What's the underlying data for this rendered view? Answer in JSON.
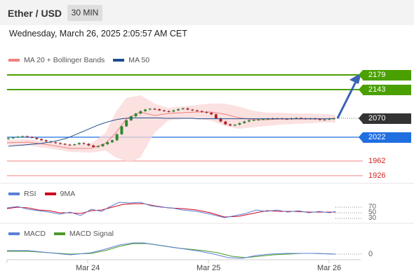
{
  "header": {
    "title": "Ether / USD",
    "timeframe": "30 MIN"
  },
  "timestamp": "Wednesday, March 26, 2025 2:05:57 AM CET",
  "legend_main": [
    {
      "label": "MA 20 + Bollinger Bands",
      "color": "#f08080"
    },
    {
      "label": "MA 50",
      "color": "#1f4e8c"
    }
  ],
  "legend_rsi": [
    {
      "label": "RSI",
      "color": "#5b7fd6"
    },
    {
      "label": "9MA",
      "color": "#d0021b"
    }
  ],
  "legend_macd": [
    {
      "label": "MACD",
      "color": "#5b7fd6"
    },
    {
      "label": "MACD Signal",
      "color": "#4a9a2a"
    }
  ],
  "price_tags": {
    "resistance_2": {
      "value": "2179",
      "color": "#4aa000"
    },
    "resistance_1": {
      "value": "2143",
      "color": "#4aa000"
    },
    "current": {
      "value": "2070",
      "color": "#333333"
    },
    "pivot": {
      "value": "2022",
      "color": "#1f6fe0"
    }
  },
  "support_levels": [
    "1962",
    "1926"
  ],
  "rsi_levels": [
    "70",
    "50",
    "30"
  ],
  "macd_zero": "0",
  "x_axis": [
    "Mar 24",
    "Mar 25",
    "Mar 26"
  ],
  "chart_data": {
    "type": "candlestick",
    "price_levels": {
      "r2": 2179,
      "r1": 2143,
      "current": 2070,
      "pivot": 2022,
      "s1": 1962,
      "s2": 1926
    },
    "close_series": [
      2020,
      2022,
      2024,
      2025,
      2023,
      2021,
      2018,
      2015,
      2012,
      2010,
      2008,
      2006,
      2004,
      2003,
      2005,
      2008,
      2006,
      2002,
      1998,
      2000,
      2005,
      2010,
      2015,
      2030,
      2050,
      2065,
      2075,
      2082,
      2088,
      2092,
      2094,
      2093,
      2090,
      2088,
      2087,
      2090,
      2093,
      2095,
      2092,
      2090,
      2088,
      2086,
      2084,
      2080,
      2070,
      2062,
      2055,
      2052,
      2054,
      2058,
      2062,
      2065,
      2066,
      2067,
      2068,
      2069,
      2070,
      2070,
      2069,
      2068,
      2070,
      2071,
      2070,
      2069,
      2070,
      2068,
      2066,
      2067,
      2069,
      2070
    ],
    "ma50_series": [
      2000,
      2001,
      2002,
      2003,
      2004,
      2005,
      2006,
      2007,
      2009,
      2011,
      2013,
      2016,
      2019,
      2023,
      2028,
      2033,
      2038,
      2043,
      2048,
      2053,
      2057,
      2061,
      2064,
      2067,
      2069,
      2070,
      2071,
      2071,
      2071,
      2071,
      2071,
      2071,
      2071,
      2070,
      2070,
      2070,
      2070,
      2070,
      2070,
      2070,
      2069,
      2069,
      2069,
      2069,
      2069,
      2069,
      2069,
      2069,
      2069,
      2069,
      2069,
      2069,
      2069,
      2069,
      2069,
      2069,
      2069,
      2069,
      2069,
      2069,
      2069,
      2069,
      2069,
      2069,
      2069,
      2069,
      2069,
      2069,
      2069,
      2069
    ],
    "forecast_target": 2179
  }
}
